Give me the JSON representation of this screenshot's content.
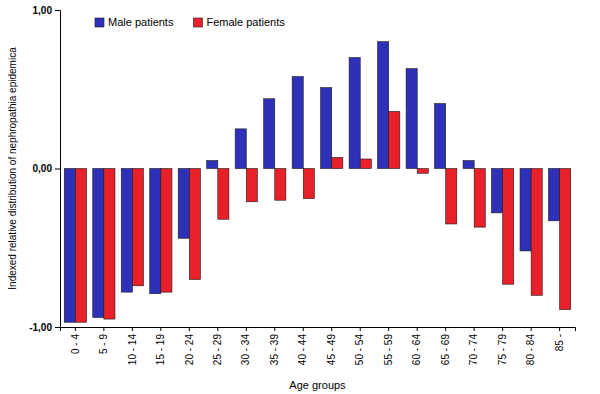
{
  "chart_data": {
    "type": "bar",
    "x_label": "Age groups",
    "y_label": "Indexed relative distribution of nephropathia epidemica",
    "categories": [
      "0 - 4",
      "5 - 9",
      "10 - 14",
      "15 - 19",
      "20 - 24",
      "25 - 29",
      "30 - 34",
      "35 - 39",
      "40 - 44",
      "45 - 49",
      "50 - 54",
      "55 - 59",
      "60 - 64",
      "65 - 69",
      "70 - 74",
      "75 - 79",
      "80 - 84",
      "85 -"
    ],
    "series": [
      {
        "name": "Male patients",
        "color": "#2e30b8",
        "values": [
          -0.97,
          -0.94,
          -0.78,
          -0.79,
          -0.44,
          0.05,
          0.25,
          0.44,
          0.58,
          0.51,
          0.7,
          0.8,
          0.63,
          0.41,
          0.05,
          -0.28,
          -0.52,
          -0.33
        ]
      },
      {
        "name": "Female patients",
        "color": "#e8202a",
        "values": [
          -0.97,
          -0.95,
          -0.74,
          -0.78,
          -0.7,
          -0.32,
          -0.21,
          -0.2,
          -0.19,
          0.07,
          0.06,
          0.36,
          -0.03,
          -0.35,
          -0.37,
          -0.73,
          -0.8,
          -0.89
        ]
      }
    ],
    "ylim": [
      -1,
      1
    ],
    "yticks": [
      {
        "value": -1,
        "label": "-1,00"
      },
      {
        "value": 0,
        "label": "0,00"
      },
      {
        "value": 1,
        "label": "1,00"
      }
    ],
    "grid": false,
    "legend": "upper left"
  }
}
